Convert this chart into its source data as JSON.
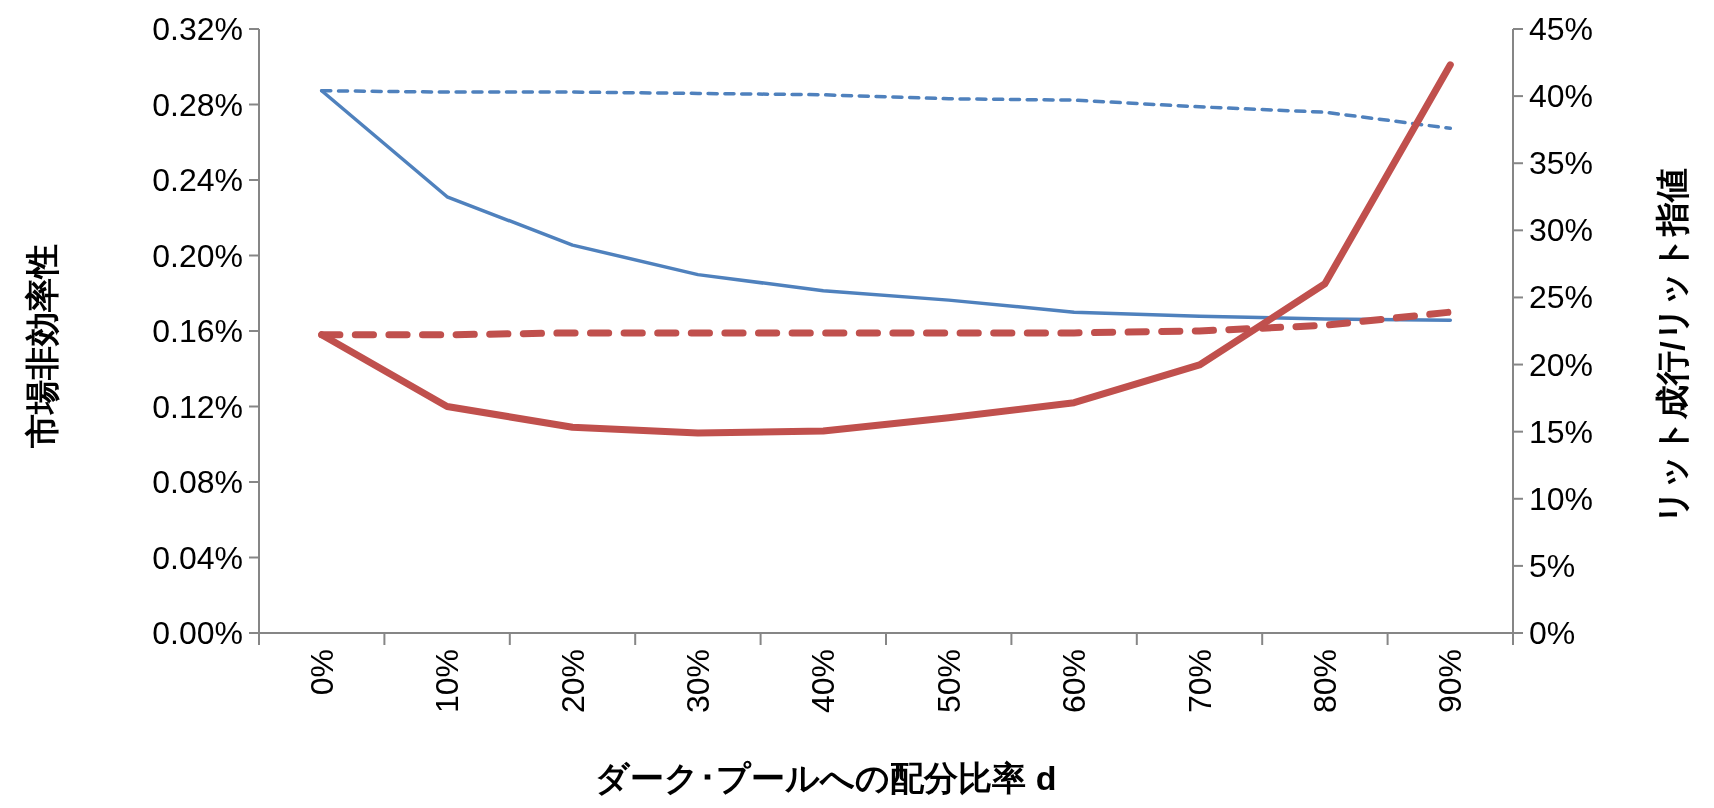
{
  "chart_data": {
    "type": "line",
    "xlabel": "ダーク･プールへの配分比率 d",
    "ylabel": "市場非効率性",
    "y2label": "リット成行/リット指値",
    "categories": [
      "0%",
      "10%",
      "20%",
      "30%",
      "40%",
      "50%",
      "60%",
      "70%",
      "80%",
      "90%"
    ],
    "ylim": [
      0,
      0.32
    ],
    "yticks": [
      {
        "value": 0,
        "label": "0.00%"
      },
      {
        "value": 0.04,
        "label": "0.04%"
      },
      {
        "value": 0.08,
        "label": "0.08%"
      },
      {
        "value": 0.12,
        "label": "0.12%"
      },
      {
        "value": 0.16,
        "label": "0.16%"
      },
      {
        "value": 0.2,
        "label": "0.20%"
      },
      {
        "value": 0.24,
        "label": "0.24%"
      },
      {
        "value": 0.28,
        "label": "0.28%"
      },
      {
        "value": 0.32,
        "label": "0.32%"
      }
    ],
    "y2lim": [
      0,
      45
    ],
    "y2ticks": [
      {
        "value": 0,
        "label": "0%"
      },
      {
        "value": 5,
        "label": "5%"
      },
      {
        "value": 10,
        "label": "10%"
      },
      {
        "value": 15,
        "label": "15%"
      },
      {
        "value": 20,
        "label": "20%"
      },
      {
        "value": 25,
        "label": "25%"
      },
      {
        "value": 30,
        "label": "30%"
      },
      {
        "value": 35,
        "label": "35%"
      },
      {
        "value": 40,
        "label": "40%"
      },
      {
        "value": 45,
        "label": "45%"
      }
    ],
    "grid": false,
    "marker": "none",
    "series": [
      {
        "color": "#4f81bd",
        "axis": "y2",
        "line_style": "dashed",
        "values": [
          40.4,
          40.3,
          40.3,
          40.2,
          40.1,
          39.8,
          39.7,
          39.2,
          38.8,
          37.6
        ]
      },
      {
        "color": "#4f81bd",
        "axis": "y2",
        "line_style": "solid",
        "values": [
          40.4,
          32.5,
          28.9,
          26.7,
          25.5,
          24.8,
          23.9,
          23.6,
          23.4,
          23.3
        ]
      },
      {
        "color": "#c0504d",
        "axis": "y",
        "line_style": "dashed",
        "values": [
          0.158,
          0.158,
          0.159,
          0.159,
          0.159,
          0.159,
          0.159,
          0.16,
          0.163,
          0.17
        ]
      },
      {
        "color": "#c0504d",
        "axis": "y",
        "line_style": "solid",
        "values": [
          0.158,
          0.12,
          0.109,
          0.106,
          0.107,
          0.114,
          0.122,
          0.142,
          0.185,
          0.301
        ]
      }
    ]
  }
}
